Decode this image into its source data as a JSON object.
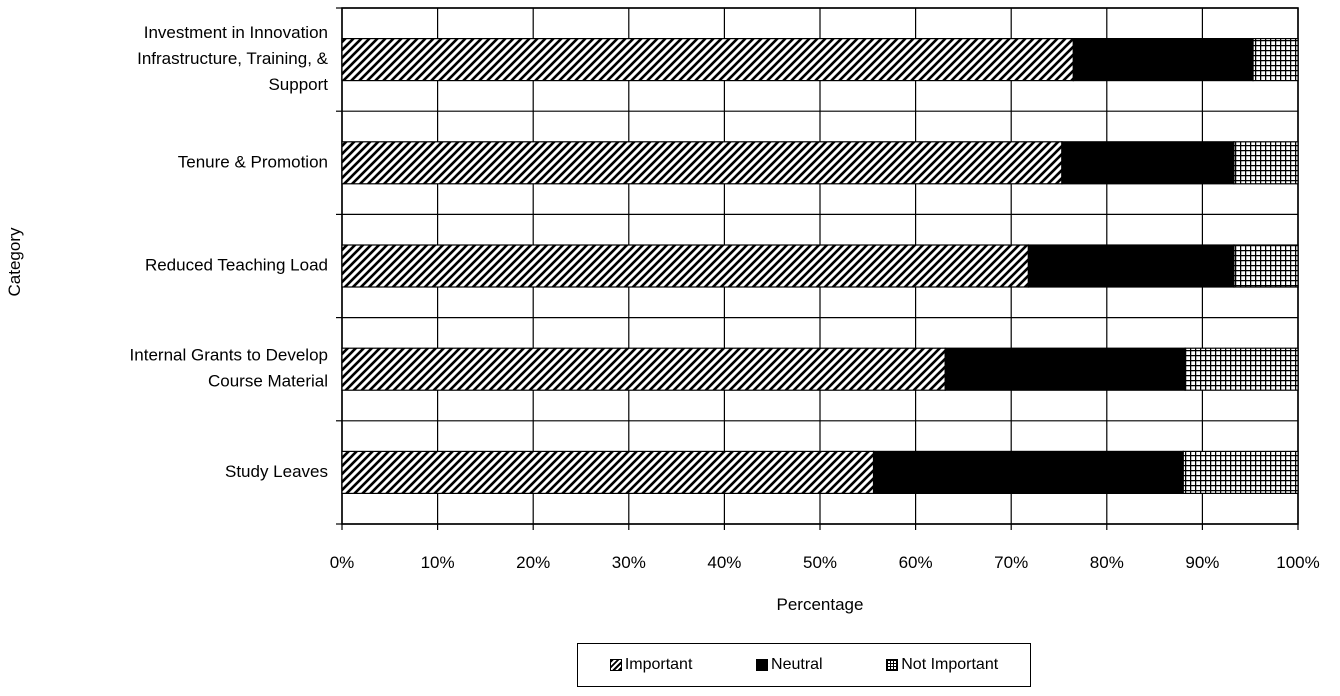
{
  "chart_data": {
    "type": "bar",
    "orientation": "horizontal",
    "stacked": "percent",
    "title": "",
    "xlabel": "Percentage",
    "ylabel": "Category",
    "xlim": [
      0,
      100
    ],
    "x_ticks": [
      "0%",
      "10%",
      "20%",
      "30%",
      "40%",
      "50%",
      "60%",
      "70%",
      "80%",
      "90%",
      "100%"
    ],
    "grid": true,
    "legend_position": "bottom",
    "categories": [
      [
        "Investment in Innovation",
        "Infrastructure, Training, &",
        "Support"
      ],
      [
        "Tenure & Promotion"
      ],
      [
        "Reduced Teaching Load"
      ],
      [
        "Internal Grants to Develop",
        "Course Material"
      ],
      [
        "Study Leaves"
      ]
    ],
    "series": [
      {
        "name": "Important",
        "pattern": "diagonal-hatch",
        "values": [
          76.5,
          75.3,
          71.8,
          63.1,
          55.6
        ]
      },
      {
        "name": "Neutral",
        "pattern": "solid-black",
        "values": [
          18.8,
          18.0,
          21.5,
          25.1,
          32.4
        ]
      },
      {
        "name": "Not Important",
        "pattern": "grid",
        "values": [
          4.7,
          6.7,
          6.7,
          11.8,
          12.0
        ]
      }
    ],
    "colors": {
      "fill": "#000000",
      "background": "#ffffff"
    }
  }
}
